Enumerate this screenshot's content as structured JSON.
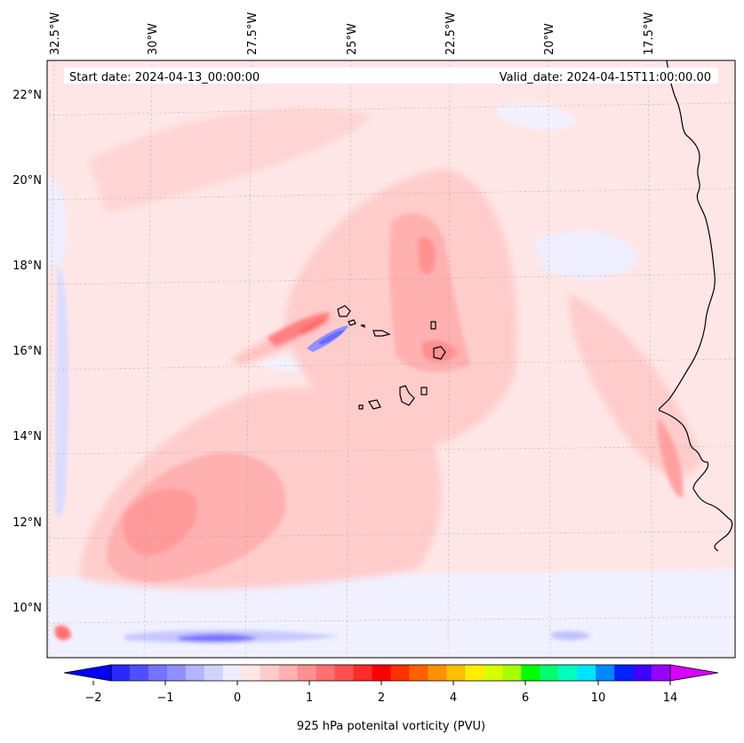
{
  "map": {
    "start_date": "Start date: 2024-04-13_00:00:00",
    "valid_date": "Valid_date: 2024-04-15T11:00:00.00",
    "lon_labels": [
      "32.5°W",
      "30°W",
      "27.5°W",
      "25°W",
      "22.5°W",
      "20°W",
      "17.5°W"
    ],
    "lat_labels": [
      "22°N",
      "20°N",
      "18°N",
      "16°N",
      "14°N",
      "12°N",
      "10°N"
    ],
    "background_color": "#ffe6e6",
    "gridlines": true
  },
  "colorbar": {
    "label": "925 hPa potenital vorticity (PVU)",
    "tick_labels": [
      "−2",
      "−1",
      "0",
      "1",
      "2",
      "4",
      "6",
      "10",
      "14"
    ],
    "colors": [
      "#0000ff",
      "#2a2aff",
      "#5050ff",
      "#7474ff",
      "#9090ff",
      "#b4b4ff",
      "#d2d2ff",
      "#eeeeff",
      "#ffe6e6",
      "#ffcccc",
      "#ffb0b0",
      "#ff9090",
      "#ff7070",
      "#ff5050",
      "#ff2a2a",
      "#ff0000",
      "#ff3000",
      "#ff6000",
      "#ff9000",
      "#ffbf00",
      "#ffee00",
      "#d8ff00",
      "#a8ff00",
      "#00ff00",
      "#00ff70",
      "#00ffbf",
      "#00e5ff",
      "#0088ff",
      "#0022ff",
      "#4000ff",
      "#9a00ff",
      "#d800ff"
    ]
  }
}
